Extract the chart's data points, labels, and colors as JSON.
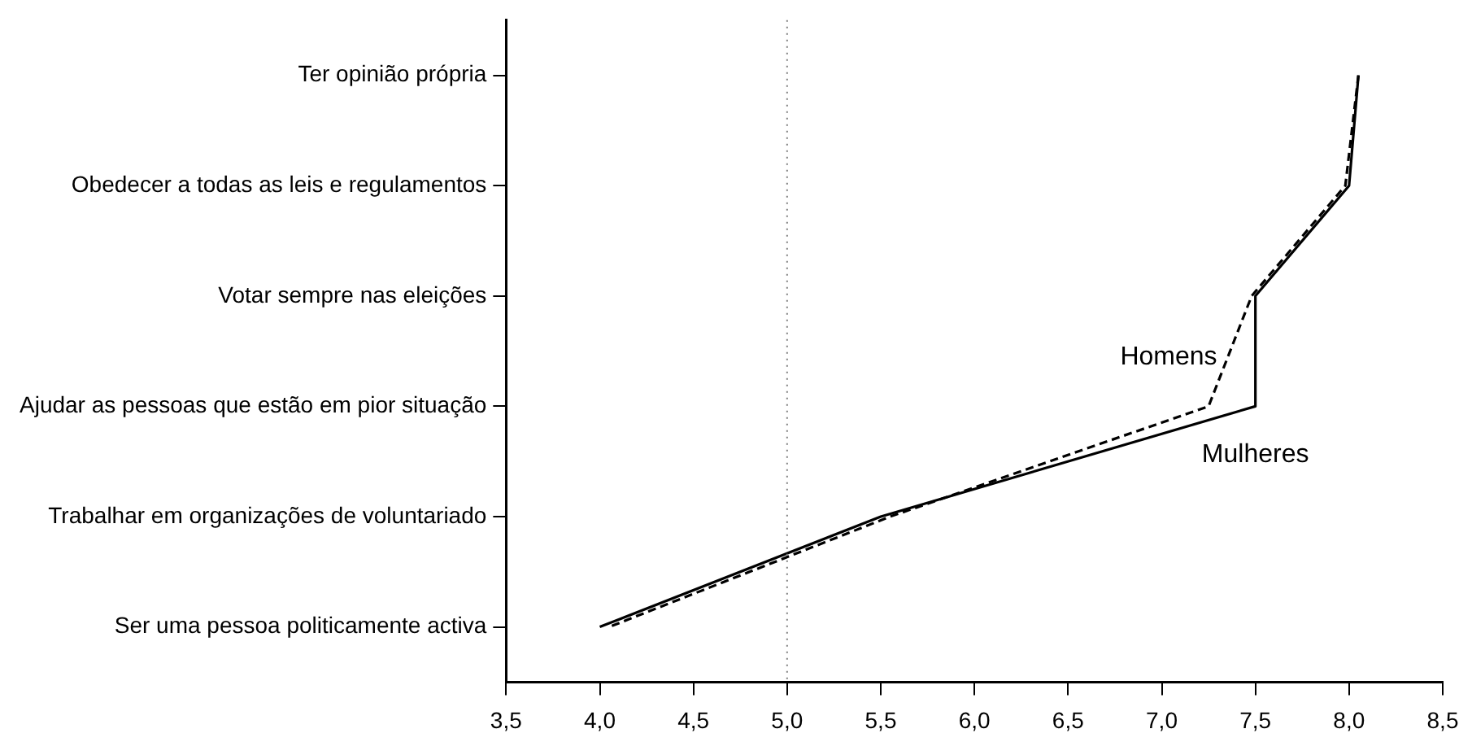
{
  "chart_data": {
    "type": "line",
    "orientation": "horizontal",
    "categories": [
      "Ter opinião própria",
      "Obedecer a todas as leis e regulamentos",
      "Votar sempre nas eleições",
      "Ajudar as pessoas que estão em pior situação",
      "Trabalhar em organizações de voluntariado",
      "Ser uma pessoa politicamente activa"
    ],
    "series": [
      {
        "name": "Mulheres",
        "color": "#000000",
        "line_style": "solid",
        "values": [
          8.05,
          8.0,
          7.5,
          7.5,
          5.5,
          4.0
        ]
      },
      {
        "name": "Homens",
        "color": "#000000",
        "line_style": "dashed",
        "values": [
          8.05,
          7.98,
          7.48,
          7.25,
          5.55,
          4.05
        ]
      }
    ],
    "xlim": [
      3.5,
      8.5
    ],
    "xticks": [
      {
        "value": 3.5,
        "label": "3,5"
      },
      {
        "value": 4.0,
        "label": "4,0"
      },
      {
        "value": 4.5,
        "label": "4,5"
      },
      {
        "value": 5.0,
        "label": "5,0"
      },
      {
        "value": 5.5,
        "label": "5,5"
      },
      {
        "value": 6.0,
        "label": "6,0"
      },
      {
        "value": 6.5,
        "label": "6,5"
      },
      {
        "value": 7.0,
        "label": "7,0"
      },
      {
        "value": 7.5,
        "label": "7,5"
      },
      {
        "value": 8.0,
        "label": "8,0"
      },
      {
        "value": 8.5,
        "label": "8,5"
      }
    ],
    "ref_lines": [
      {
        "axis": "x",
        "value": 5.0,
        "color": "#808080",
        "line_style": "dotted"
      }
    ],
    "grid": false,
    "legend": false,
    "marker": "none"
  }
}
